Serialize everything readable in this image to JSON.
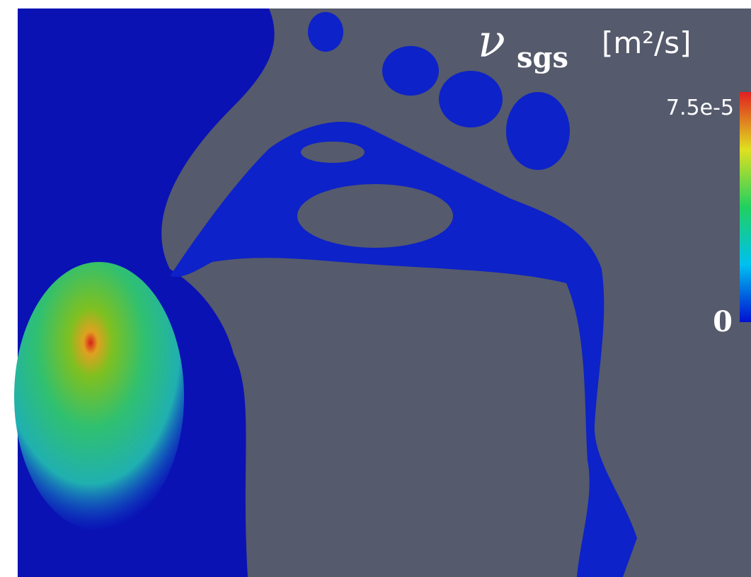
{
  "legend": {
    "symbol": "ν",
    "subscript": "sgs",
    "unit": "[m²/s]",
    "max_label": "7.5e-5",
    "min_label": "0"
  }
}
